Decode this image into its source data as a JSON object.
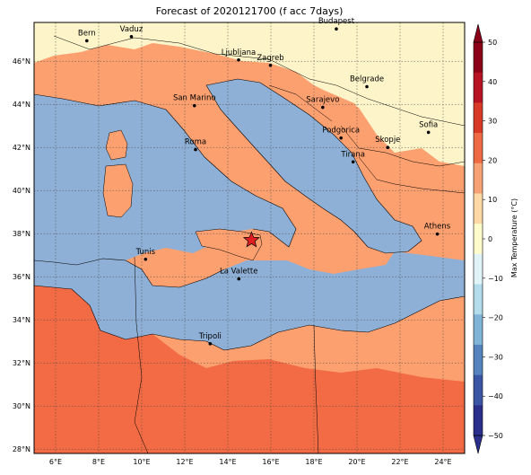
{
  "title": "Forecast of 2020121700 (f acc 7days)",
  "map": {
    "lat_ticks": [
      "28°N",
      "30°N",
      "32°N",
      "34°N",
      "36°N",
      "38°N",
      "40°N",
      "42°N",
      "44°N",
      "46°N"
    ],
    "lon_ticks": [
      "6°E",
      "8°E",
      "10°E",
      "12°E",
      "14°E",
      "16°E",
      "18°E",
      "20°E",
      "22°E",
      "24°E"
    ],
    "lat_range": [
      27.8,
      47.8
    ],
    "lon_range": [
      5.0,
      25.0
    ],
    "gridlines": true,
    "sea_color": "#8fb0d6",
    "marker": {
      "name": "star",
      "lon": 15.1,
      "lat": 37.7,
      "color": "#e02020"
    },
    "cities": [
      {
        "name": "Bern",
        "lon": 7.45,
        "lat": 46.95
      },
      {
        "name": "Vaduz",
        "lon": 9.52,
        "lat": 47.14
      },
      {
        "name": "Budapest",
        "lon": 19.04,
        "lat": 47.5
      },
      {
        "name": "Ljubljana",
        "lon": 14.5,
        "lat": 46.06
      },
      {
        "name": "Zagreb",
        "lon": 15.98,
        "lat": 45.81
      },
      {
        "name": "Belgrade",
        "lon": 20.46,
        "lat": 44.82
      },
      {
        "name": "San Marino",
        "lon": 12.45,
        "lat": 43.94
      },
      {
        "name": "Sarajevo",
        "lon": 18.41,
        "lat": 43.86
      },
      {
        "name": "Sofia",
        "lon": 23.32,
        "lat": 42.7
      },
      {
        "name": "Podgorica",
        "lon": 19.26,
        "lat": 42.44
      },
      {
        "name": "Skopje",
        "lon": 21.43,
        "lat": 42.0
      },
      {
        "name": "Roma",
        "lon": 12.5,
        "lat": 41.9
      },
      {
        "name": "Tirana",
        "lon": 19.82,
        "lat": 41.33
      },
      {
        "name": "Athens",
        "lon": 23.73,
        "lat": 37.98
      },
      {
        "name": "Tunis",
        "lon": 10.18,
        "lat": 36.81
      },
      {
        "name": "La Valette",
        "lon": 14.51,
        "lat": 35.9
      },
      {
        "name": "Tripoli",
        "lon": 13.18,
        "lat": 32.89
      }
    ]
  },
  "colorbar": {
    "label": "Max Temperature (°C)",
    "ticks": [
      "50",
      "40",
      "30",
      "20",
      "10",
      "0",
      "−10",
      "−20",
      "−30",
      "−40",
      "−50"
    ],
    "levels": [
      50,
      45,
      40,
      35,
      30,
      25,
      20,
      15,
      10,
      5,
      0,
      -5,
      -10,
      -15,
      -20,
      -25,
      -30,
      -35,
      -40,
      -45,
      -50
    ],
    "colors": [
      "#8b0018",
      "#b71323",
      "#d93a27",
      "#ee6a45",
      "#f7a274",
      "#fdd8a5",
      "#fffccb",
      "#e0f4f8",
      "#b2dbeb",
      "#7fb4d6",
      "#5583bd",
      "#3b55a5",
      "#2b2f8c"
    ]
  }
}
